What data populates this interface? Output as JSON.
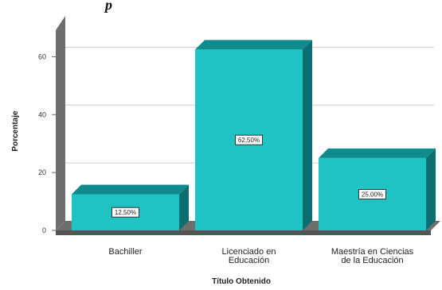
{
  "page": {
    "header_text": "p"
  },
  "chart_data": {
    "type": "bar",
    "title": "",
    "xlabel": "Título Obtenido",
    "ylabel": "Porcentaje",
    "ylim": [
      0,
      70
    ],
    "yticks": [
      0,
      20,
      40,
      60
    ],
    "ytick_labels": [
      "0",
      "20",
      "40",
      "60"
    ],
    "categories": [
      [
        "Bachiller"
      ],
      [
        "Licenciado en",
        "Educación"
      ],
      [
        "Maestría en Ciencias",
        "de la Educación"
      ]
    ],
    "values": [
      12.5,
      62.5,
      25.0
    ],
    "data_labels": [
      "12,50%",
      "62,50%",
      "25,00%"
    ],
    "grid": true,
    "legend": "none",
    "colors": {
      "bar_front": "#1fc3c4",
      "bar_top": "#108b8d",
      "bar_side": "#0b6f71",
      "back_wall": "#ffffff",
      "left_wall": "#6e6e6e",
      "floor": "#6e6e6e",
      "gridline": "#cccccc"
    }
  }
}
